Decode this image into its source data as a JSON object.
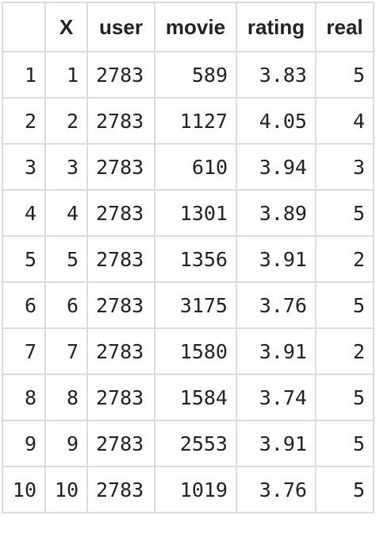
{
  "table": {
    "headers": [
      "",
      "X",
      "user",
      "movie",
      "rating",
      "real"
    ],
    "rows": [
      [
        "1",
        "1",
        "2783",
        "589",
        "3.83",
        "5"
      ],
      [
        "2",
        "2",
        "2783",
        "1127",
        "4.05",
        "4"
      ],
      [
        "3",
        "3",
        "2783",
        "610",
        "3.94",
        "3"
      ],
      [
        "4",
        "4",
        "2783",
        "1301",
        "3.89",
        "5"
      ],
      [
        "5",
        "5",
        "2783",
        "1356",
        "3.91",
        "2"
      ],
      [
        "6",
        "6",
        "2783",
        "3175",
        "3.76",
        "5"
      ],
      [
        "7",
        "7",
        "2783",
        "1580",
        "3.91",
        "2"
      ],
      [
        "8",
        "8",
        "2783",
        "1584",
        "3.74",
        "5"
      ],
      [
        "9",
        "9",
        "2783",
        "2553",
        "3.91",
        "5"
      ],
      [
        "10",
        "10",
        "2783",
        "1019",
        "3.76",
        "5"
      ]
    ]
  },
  "colors": {
    "border": "#dcdcdc",
    "text": "#222222",
    "background": "#ffffff"
  }
}
